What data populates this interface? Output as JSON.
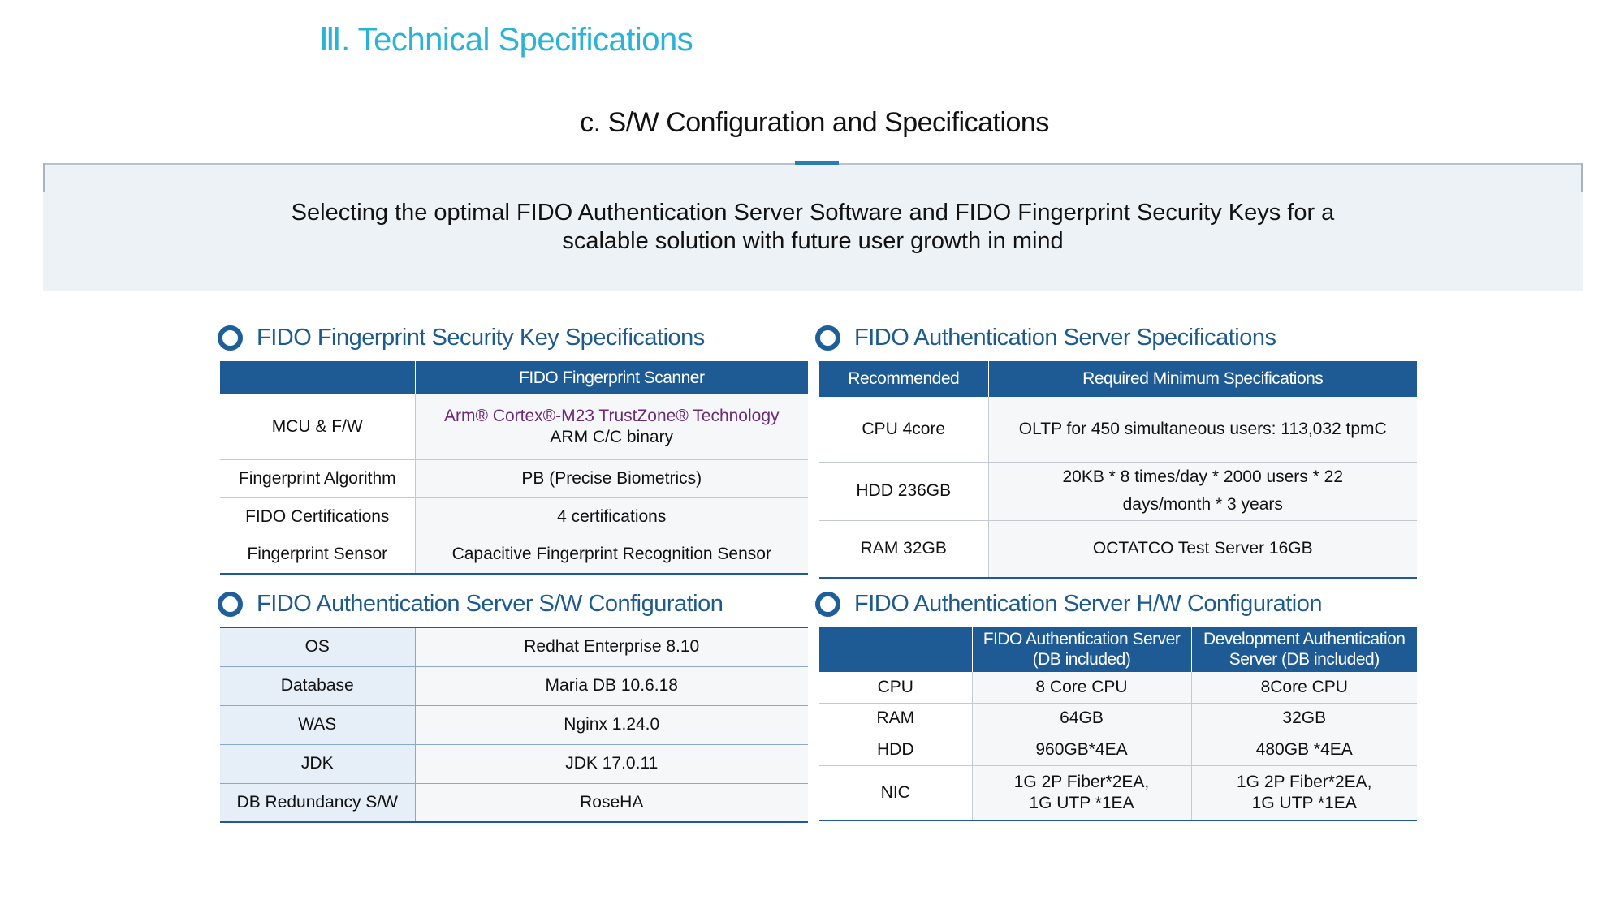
{
  "header": {
    "section_title": "Ⅲ. Technical Specifications",
    "subtitle": "c. S/W Configuration and Specifications"
  },
  "banner": {
    "line1": "Selecting the optimal FIDO Authentication Server Software and FIDO Fingerprint Security Keys for a",
    "line2": "scalable solution with future user growth in mind"
  },
  "key_specs": {
    "heading": "FIDO Fingerprint Security Key Specifications",
    "header_blank": "",
    "header_col": "FIDO Fingerprint Scanner",
    "mcu_label": "MCU & F/W",
    "mcu_value_line1": "Arm® Cortex®-M23 TrustZone® Technology",
    "mcu_value_line2": "ARM C/C binary",
    "rows": [
      {
        "label": "Fingerprint Algorithm",
        "value": "PB (Precise Biometrics)"
      },
      {
        "label": "FIDO Certifications",
        "value": "4 certifications"
      },
      {
        "label": "Fingerprint Sensor",
        "value": "Capacitive Fingerprint Recognition Sensor"
      }
    ]
  },
  "server_specs": {
    "heading": "FIDO Authentication Server Specifications",
    "header_col1": "Recommended",
    "header_col2": "Required Minimum Specifications",
    "rows": [
      {
        "label": "CPU 4core",
        "value": "OLTP for 450 simultaneous users: 113,032 tpmC"
      },
      {
        "label": "HDD 236GB",
        "value_line1": "20KB * 8 times/day * 2000 users * 22",
        "value_line2": "days/month * 3 years"
      },
      {
        "label": "RAM 32GB",
        "value": "OCTATCO Test Server 16GB"
      }
    ]
  },
  "sw_config": {
    "heading": "FIDO Authentication Server S/W Configuration",
    "rows": [
      {
        "label": "OS",
        "value": "Redhat Enterprise 8.10"
      },
      {
        "label": "Database",
        "value": "Maria DB 10.6.18"
      },
      {
        "label": "WAS",
        "value": "Nginx 1.24.0"
      },
      {
        "label": "JDK",
        "value": "JDK 17.0.11"
      },
      {
        "label": "DB Redundancy S/W",
        "value": "RoseHA"
      }
    ]
  },
  "hw_config": {
    "heading": "FIDO Authentication Server H/W Configuration",
    "header_blank": "",
    "header_col1_line1": "FIDO Authentication Server",
    "header_col1_line2": "(DB included)",
    "header_col2_line1": "Development Authentication",
    "header_col2_line2": "Server (DB included)",
    "rows": [
      {
        "label": "CPU",
        "a": "8 Core CPU",
        "b": "8Core CPU"
      },
      {
        "label": "RAM",
        "a": "64GB",
        "b": "32GB"
      },
      {
        "label": "HDD",
        "a": "960GB*4EA",
        "b": "480GB *4EA"
      }
    ],
    "nic_label": "NIC",
    "nic_a_line1": "1G 2P Fiber*2EA,",
    "nic_a_line2": "1G UTP *1EA",
    "nic_b_line1": "1G 2P Fiber*2EA,",
    "nic_b_line2": "1G UTP *1EA"
  },
  "colors": {
    "accent_cyan": "#2bb3d6",
    "header_navy": "#1e5b94",
    "heading_blue": "#1d5a8e",
    "banner_bg": "#edf2f6",
    "highlight_purple": "#6b2a78"
  }
}
